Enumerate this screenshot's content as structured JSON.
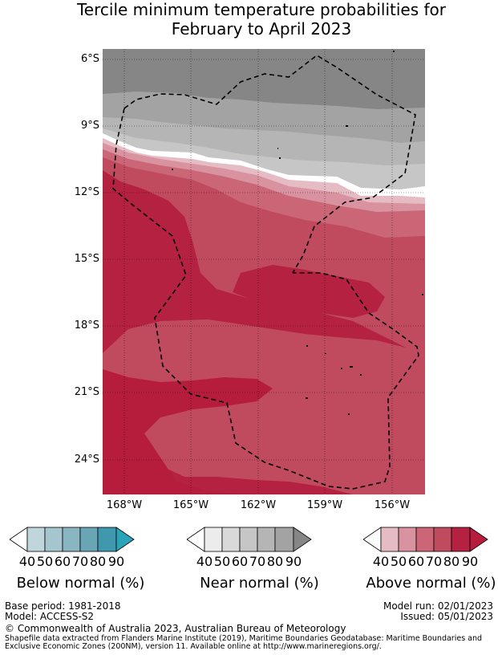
{
  "title": {
    "line1": "Tercile minimum temperature probabilities for",
    "line2": "February to April 2023"
  },
  "map": {
    "lat_labels": [
      "6°S",
      "9°S",
      "12°S",
      "15°S",
      "18°S",
      "21°S",
      "24°S"
    ],
    "lon_labels": [
      "168°W",
      "165°W",
      "162°W",
      "159°W",
      "156°W"
    ],
    "colors": {
      "above": [
        "#e6bcc4",
        "#d993a0",
        "#cb6677",
        "#c04a5e",
        "#b52141",
        "#b61c3c"
      ],
      "near": [
        "#ececec",
        "#d9d9d9",
        "#c6c6c6",
        "#b5b5b5",
        "#a3a3a3",
        "#868686"
      ],
      "below": [
        "#bfd6dd",
        "#a5c5cf",
        "#89b6c2",
        "#6aa5b5",
        "#3f98ad",
        "#2aa5b8"
      ]
    }
  },
  "legends": [
    {
      "title": "Below normal (%)",
      "ticks": [
        "40",
        "50",
        "60",
        "70",
        "80",
        "90"
      ],
      "palette": "below"
    },
    {
      "title": "Near normal (%)",
      "ticks": [
        "40",
        "50",
        "60",
        "70",
        "80",
        "90"
      ],
      "palette": "near"
    },
    {
      "title": "Above normal (%)",
      "ticks": [
        "40",
        "50",
        "60",
        "70",
        "80",
        "90"
      ],
      "palette": "above"
    }
  ],
  "footer": {
    "base_period": "Base period: 1981-2018",
    "model": "Model: ACCESS-S2",
    "model_run": "Model run: 02/01/2023",
    "issued": "Issued: 05/01/2023",
    "copyright": "© Commonwealth of Australia 2023, Australian Bureau of Meteorology",
    "shapefile_line1": "Shapefile data extracted from Flanders Marine Institute (2019), Maritime Boundaries Geodatabase: Maritime Boundaries and",
    "shapefile_line2": "Exclusive Economic Zones (200NM), version 11. Available online at http://www.marineregions.org/."
  }
}
